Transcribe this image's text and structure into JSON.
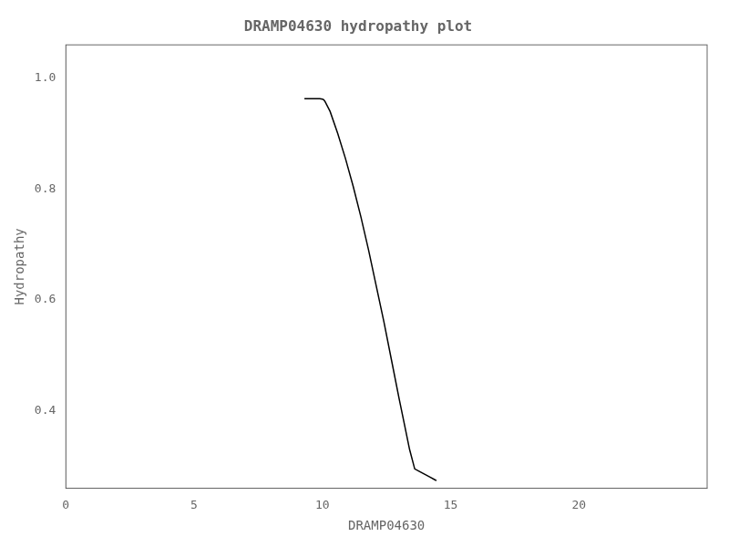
{
  "chart_data": {
    "type": "line",
    "title": "DRAMP04630 hydropathy plot",
    "xlabel": "DRAMP04630",
    "ylabel": "Hydropathy",
    "x": [
      9.3,
      9.5,
      9.7,
      9.9,
      10.0,
      10.05,
      10.1,
      10.3,
      10.6,
      10.9,
      11.2,
      11.5,
      11.8,
      12.1,
      12.4,
      12.7,
      13.0,
      13.2,
      13.4,
      13.6,
      13.8,
      14.0,
      14.2,
      14.4,
      14.45
    ],
    "values": [
      0.963,
      0.963,
      0.963,
      0.963,
      0.962,
      0.961,
      0.958,
      0.94,
      0.9,
      0.855,
      0.805,
      0.75,
      0.69,
      0.625,
      0.56,
      0.49,
      0.42,
      0.375,
      0.33,
      0.295,
      0.29,
      0.285,
      0.28,
      0.275,
      0.274
    ],
    "color": "#000000",
    "xlim": [
      0,
      25
    ],
    "xticks": [
      0,
      5,
      10,
      15,
      20
    ],
    "ylim": [
      0.26,
      1.06
    ],
    "yticks": [
      0.4,
      0.6,
      0.8,
      {
        "value": 1.0,
        "label": "1.0"
      }
    ],
    "grid": false
  }
}
